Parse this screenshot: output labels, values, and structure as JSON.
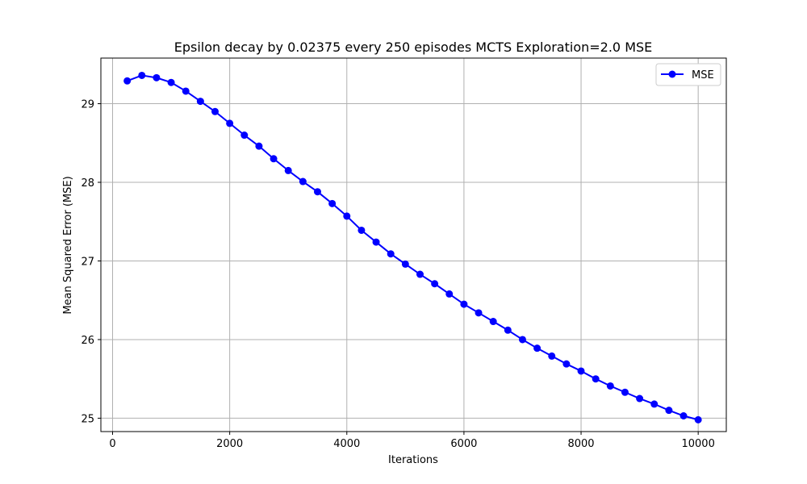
{
  "chart_data": {
    "type": "line",
    "title": "Epsilon decay by 0.02375 every 250 episodes MCTS Exploration=2.0 MSE",
    "xlabel": "Iterations",
    "ylabel": "Mean Squared Error (MSE)",
    "xlim": [
      -200,
      10480
    ],
    "ylim": [
      24.83,
      29.58
    ],
    "xticks": [
      0,
      2000,
      4000,
      6000,
      8000,
      10000
    ],
    "yticks": [
      25,
      26,
      27,
      28,
      29
    ],
    "grid": true,
    "legend_position": "top-right",
    "series": [
      {
        "name": "MSE",
        "color": "#0000ff",
        "marker": "circle",
        "x": [
          250,
          500,
          750,
          1000,
          1250,
          1500,
          1750,
          2000,
          2250,
          2500,
          2750,
          3000,
          3250,
          3500,
          3750,
          4000,
          4250,
          4500,
          4750,
          5000,
          5250,
          5500,
          5750,
          6000,
          6250,
          6500,
          6750,
          7000,
          7250,
          7500,
          7750,
          8000,
          8250,
          8500,
          8750,
          9000,
          9250,
          9500,
          9750,
          10000
        ],
        "y": [
          29.29,
          29.36,
          29.33,
          29.27,
          29.16,
          29.03,
          28.9,
          28.75,
          28.6,
          28.46,
          28.3,
          28.15,
          28.01,
          27.88,
          27.73,
          27.57,
          27.39,
          27.24,
          27.09,
          26.96,
          26.83,
          26.71,
          26.58,
          26.45,
          26.34,
          26.23,
          26.12,
          26.0,
          25.89,
          25.79,
          25.69,
          25.6,
          25.5,
          25.41,
          25.33,
          25.25,
          25.18,
          25.1,
          25.03,
          24.98
        ]
      }
    ]
  }
}
